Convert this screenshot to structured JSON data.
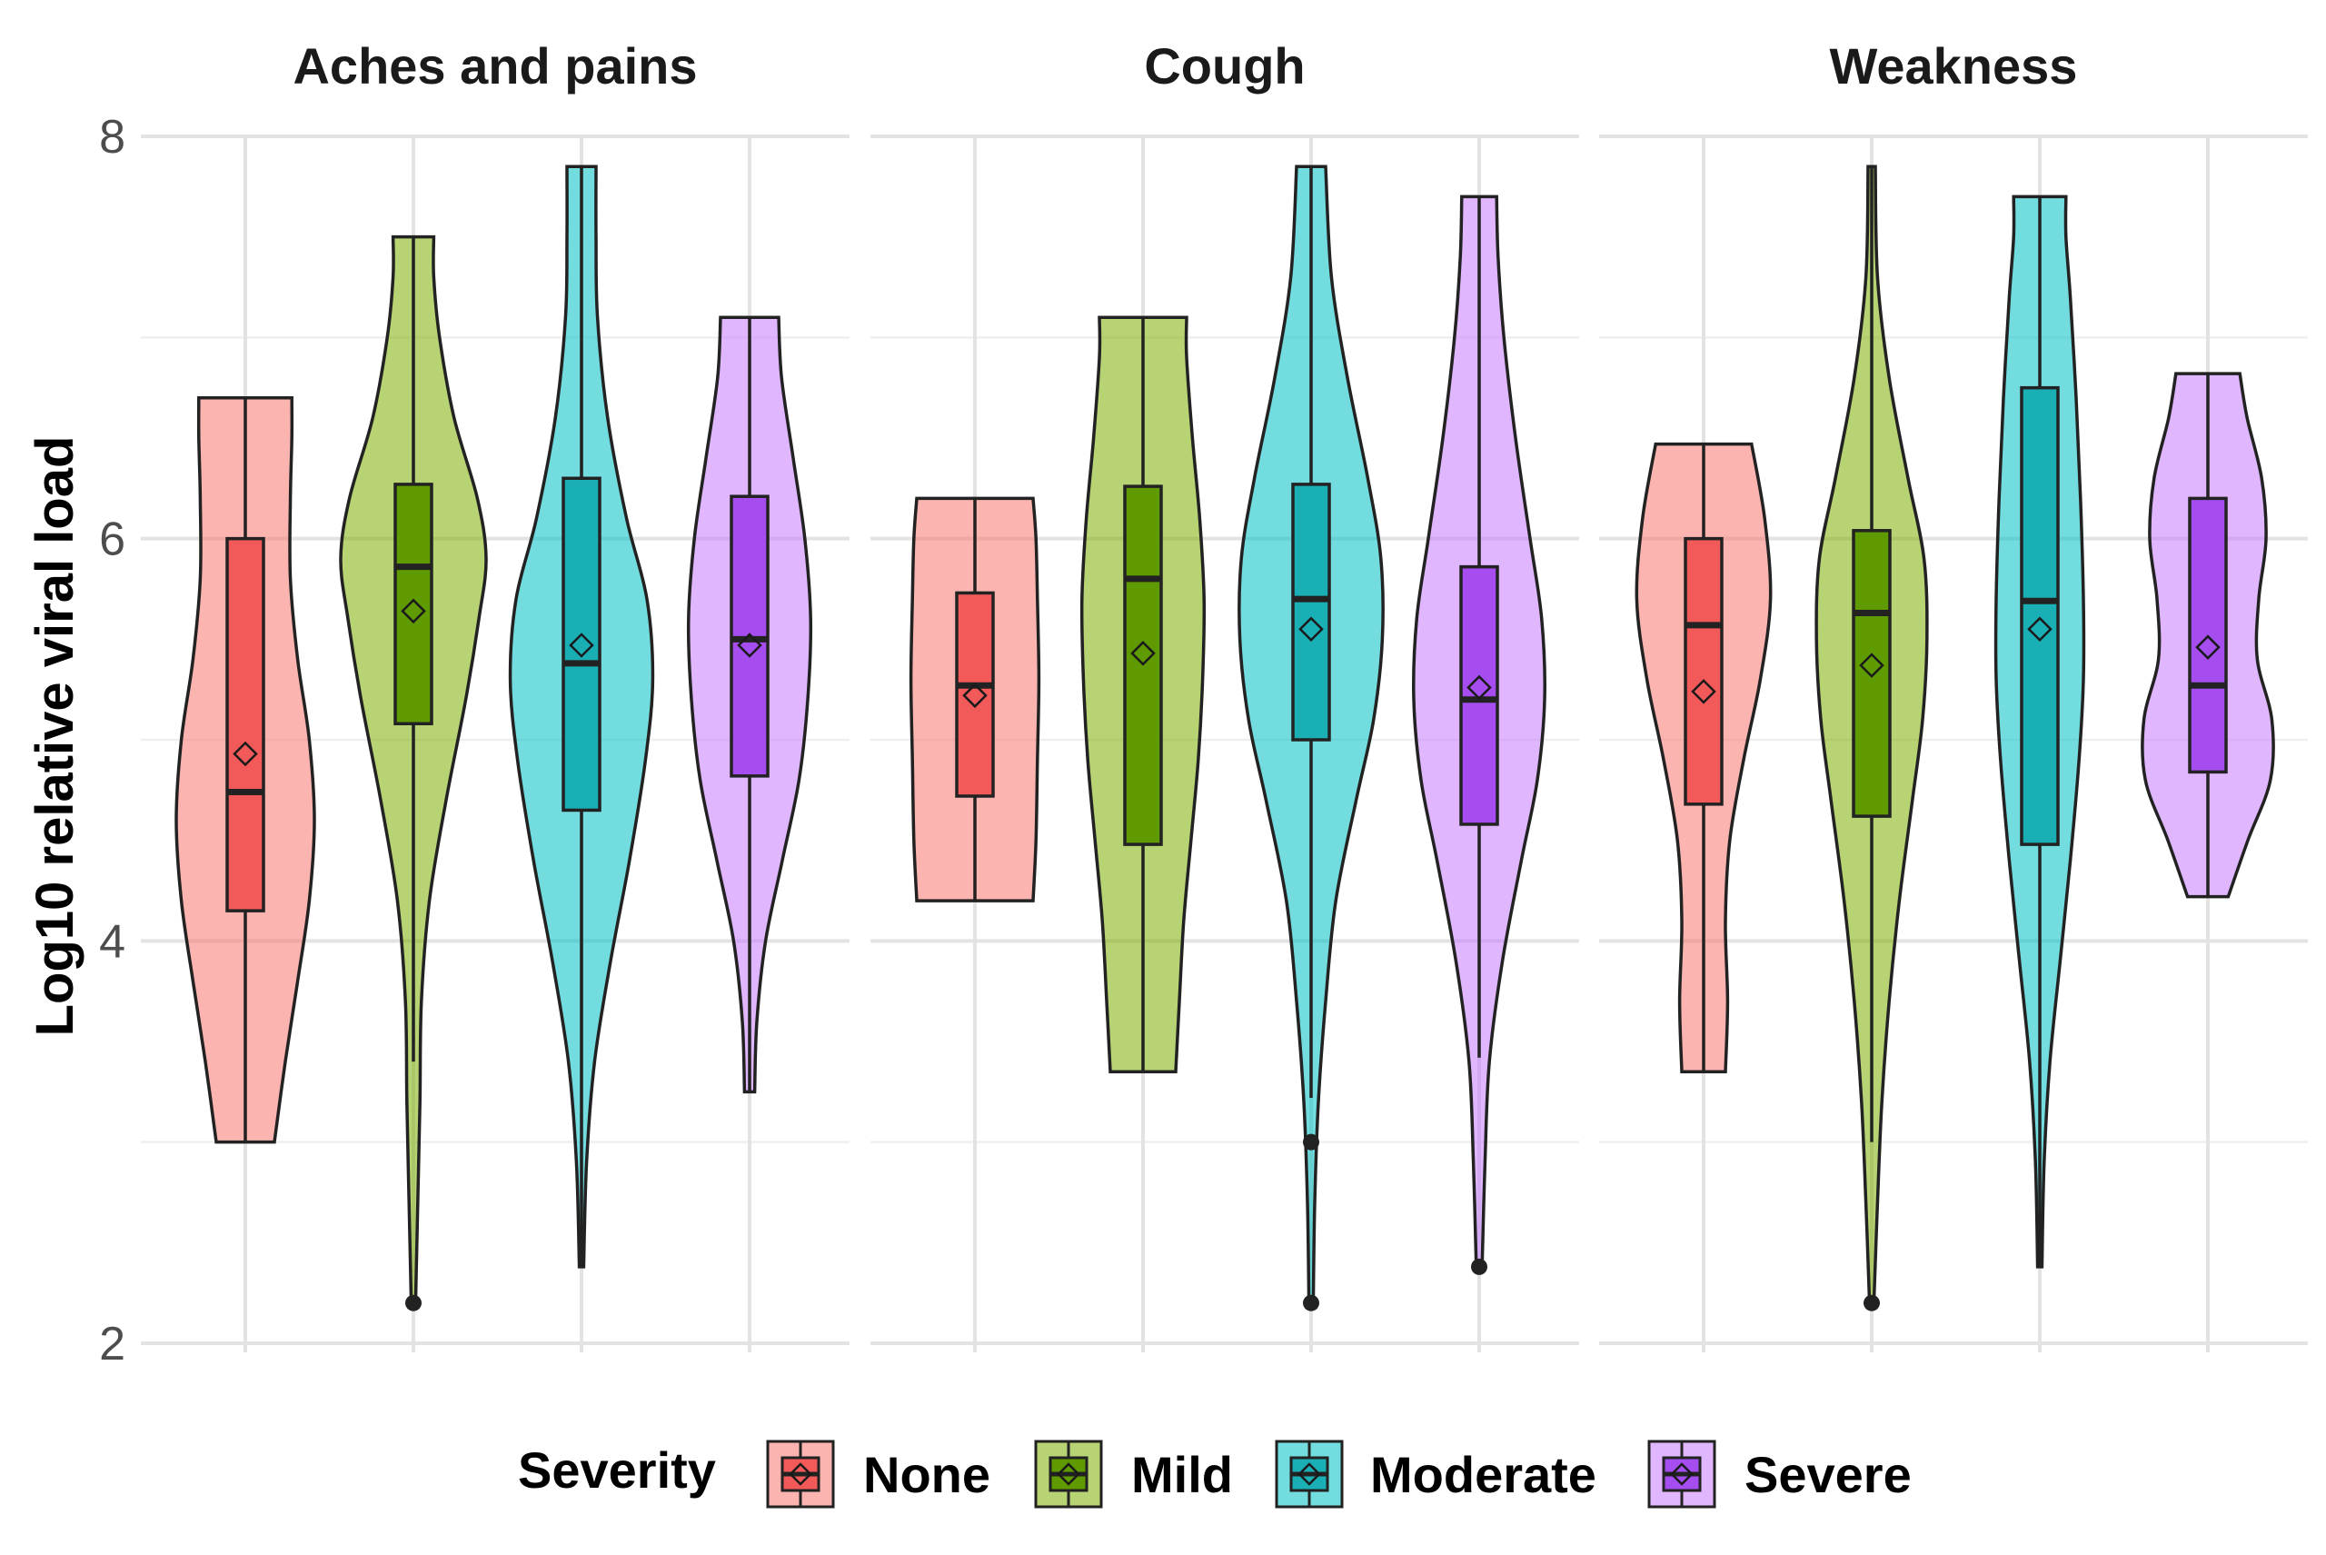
{
  "chart_data": {
    "type": "violin",
    "ylabel": "Log10 relative viral load",
    "xlabel": "",
    "ylim": [
      2,
      8
    ],
    "yticks": [
      "2",
      "4",
      "6",
      "8"
    ],
    "grid": true,
    "legend": {
      "title": "Severity",
      "position": "bottom",
      "entries": [
        "None",
        "Mild",
        "Moderate",
        "Severe"
      ]
    },
    "colors": {
      "None": "#F8766D",
      "Mild": "#7CAE00",
      "Moderate": "#00BFC4",
      "Severe": "#C77CFF"
    },
    "box_colors": {
      "None": "#F25A5A",
      "Mild": "#5E9A00",
      "Moderate": "#1AAFB5",
      "Severe": "#A64DF0"
    },
    "categories": [
      "None",
      "Mild",
      "Moderate",
      "Severe"
    ],
    "facets": [
      {
        "title": "Aches and pains",
        "groups": [
          {
            "severity": "None",
            "min": 3.0,
            "max": 6.7,
            "q1": 4.15,
            "median": 4.74,
            "q3": 6.0,
            "whisker_low": 3.0,
            "whisker_high": 6.7,
            "mean": 4.93,
            "outliers": [],
            "density": [
              [
                3.0,
                0.4
              ],
              [
                3.4,
                0.55
              ],
              [
                3.8,
                0.72
              ],
              [
                4.2,
                0.88
              ],
              [
                4.6,
                0.95
              ],
              [
                5.0,
                0.88
              ],
              [
                5.4,
                0.72
              ],
              [
                5.8,
                0.62
              ],
              [
                6.2,
                0.62
              ],
              [
                6.5,
                0.64
              ],
              [
                6.7,
                0.64
              ]
            ]
          },
          {
            "severity": "Mild",
            "min": 2.2,
            "max": 7.5,
            "q1": 5.08,
            "median": 5.86,
            "q3": 6.27,
            "whisker_low": 3.4,
            "whisker_high": 7.5,
            "mean": 5.64,
            "outliers": [
              2.2
            ],
            "density": [
              [
                2.2,
                0.03
              ],
              [
                2.7,
                0.06
              ],
              [
                3.2,
                0.09
              ],
              [
                3.7,
                0.11
              ],
              [
                4.2,
                0.22
              ],
              [
                4.7,
                0.45
              ],
              [
                5.2,
                0.72
              ],
              [
                5.6,
                0.9
              ],
              [
                5.9,
                1.0
              ],
              [
                6.2,
                0.88
              ],
              [
                6.6,
                0.56
              ],
              [
                7.0,
                0.36
              ],
              [
                7.3,
                0.28
              ],
              [
                7.5,
                0.28
              ]
            ]
          },
          {
            "severity": "Moderate",
            "min": 2.38,
            "max": 7.85,
            "q1": 4.65,
            "median": 5.38,
            "q3": 6.3,
            "whisker_low": 2.38,
            "whisker_high": 7.85,
            "mean": 5.47,
            "outliers": [],
            "density": [
              [
                2.38,
                0.03
              ],
              [
                2.9,
                0.07
              ],
              [
                3.4,
                0.18
              ],
              [
                3.9,
                0.4
              ],
              [
                4.4,
                0.66
              ],
              [
                4.9,
                0.88
              ],
              [
                5.3,
                0.98
              ],
              [
                5.7,
                0.9
              ],
              [
                6.1,
                0.62
              ],
              [
                6.6,
                0.36
              ],
              [
                7.1,
                0.22
              ],
              [
                7.5,
                0.2
              ],
              [
                7.85,
                0.2
              ]
            ]
          },
          {
            "severity": "Severe",
            "min": 3.25,
            "max": 7.1,
            "q1": 4.82,
            "median": 5.5,
            "q3": 6.21,
            "whisker_low": 3.25,
            "whisker_high": 7.1,
            "mean": 5.47,
            "outliers": [],
            "density": [
              [
                3.25,
                0.07
              ],
              [
                3.6,
                0.1
              ],
              [
                4.0,
                0.22
              ],
              [
                4.4,
                0.45
              ],
              [
                4.8,
                0.68
              ],
              [
                5.2,
                0.8
              ],
              [
                5.6,
                0.84
              ],
              [
                6.0,
                0.76
              ],
              [
                6.4,
                0.6
              ],
              [
                6.8,
                0.44
              ],
              [
                7.1,
                0.4
              ]
            ]
          }
        ]
      },
      {
        "title": "Cough",
        "groups": [
          {
            "severity": "None",
            "min": 4.2,
            "max": 6.2,
            "q1": 4.72,
            "median": 5.27,
            "q3": 5.73,
            "whisker_low": 4.2,
            "whisker_high": 6.2,
            "mean": 5.22,
            "outliers": [],
            "density": [
              [
                4.2,
                0.8
              ],
              [
                4.5,
                0.84
              ],
              [
                4.9,
                0.86
              ],
              [
                5.3,
                0.88
              ],
              [
                5.7,
                0.86
              ],
              [
                6.0,
                0.84
              ],
              [
                6.2,
                0.8
              ]
            ]
          },
          {
            "severity": "Mild",
            "min": 3.35,
            "max": 7.1,
            "q1": 4.48,
            "median": 5.8,
            "q3": 6.26,
            "whisker_low": 3.35,
            "whisker_high": 7.1,
            "mean": 5.43,
            "outliers": [],
            "density": [
              [
                3.35,
                0.45
              ],
              [
                3.7,
                0.5
              ],
              [
                4.1,
                0.56
              ],
              [
                4.5,
                0.66
              ],
              [
                4.9,
                0.76
              ],
              [
                5.3,
                0.82
              ],
              [
                5.7,
                0.84
              ],
              [
                6.1,
                0.78
              ],
              [
                6.5,
                0.68
              ],
              [
                6.9,
                0.6
              ],
              [
                7.1,
                0.6
              ]
            ]
          },
          {
            "severity": "Moderate",
            "min": 2.2,
            "max": 7.85,
            "q1": 5.0,
            "median": 5.7,
            "q3": 6.27,
            "whisker_low": 3.22,
            "whisker_high": 7.85,
            "mean": 5.55,
            "outliers": [
              3.0,
              2.2
            ],
            "density": [
              [
                2.2,
                0.03
              ],
              [
                2.7,
                0.05
              ],
              [
                3.2,
                0.1
              ],
              [
                3.7,
                0.2
              ],
              [
                4.2,
                0.34
              ],
              [
                4.7,
                0.62
              ],
              [
                5.1,
                0.86
              ],
              [
                5.5,
                0.98
              ],
              [
                5.9,
                0.96
              ],
              [
                6.3,
                0.78
              ],
              [
                6.8,
                0.5
              ],
              [
                7.3,
                0.28
              ],
              [
                7.85,
                0.2
              ]
            ]
          },
          {
            "severity": "Severe",
            "min": 2.38,
            "max": 7.7,
            "q1": 4.58,
            "median": 5.2,
            "q3": 5.86,
            "whisker_low": 3.42,
            "whisker_high": 7.7,
            "mean": 5.26,
            "outliers": [
              2.38
            ],
            "density": [
              [
                2.38,
                0.04
              ],
              [
                2.9,
                0.08
              ],
              [
                3.4,
                0.14
              ],
              [
                3.9,
                0.32
              ],
              [
                4.4,
                0.58
              ],
              [
                4.8,
                0.8
              ],
              [
                5.2,
                0.9
              ],
              [
                5.6,
                0.86
              ],
              [
                6.0,
                0.7
              ],
              [
                6.5,
                0.5
              ],
              [
                7.0,
                0.34
              ],
              [
                7.4,
                0.26
              ],
              [
                7.7,
                0.24
              ]
            ]
          }
        ]
      },
      {
        "title": "Weakness",
        "groups": [
          {
            "severity": "None",
            "min": 3.35,
            "max": 6.47,
            "q1": 4.68,
            "median": 5.57,
            "q3": 6.0,
            "whisker_low": 3.35,
            "whisker_high": 6.47,
            "mean": 5.24,
            "outliers": [],
            "density": [
              [
                3.35,
                0.3
              ],
              [
                3.7,
                0.33
              ],
              [
                4.1,
                0.3
              ],
              [
                4.5,
                0.36
              ],
              [
                4.9,
                0.55
              ],
              [
                5.3,
                0.78
              ],
              [
                5.7,
                0.92
              ],
              [
                6.1,
                0.84
              ],
              [
                6.47,
                0.66
              ]
            ]
          },
          {
            "severity": "Mild",
            "min": 2.2,
            "max": 7.85,
            "q1": 4.62,
            "median": 5.63,
            "q3": 6.04,
            "whisker_low": 3.0,
            "whisker_high": 7.85,
            "mean": 5.37,
            "outliers": [
              2.2
            ],
            "density": [
              [
                2.2,
                0.03
              ],
              [
                2.7,
                0.08
              ],
              [
                3.2,
                0.14
              ],
              [
                3.7,
                0.24
              ],
              [
                4.2,
                0.38
              ],
              [
                4.7,
                0.56
              ],
              [
                5.1,
                0.7
              ],
              [
                5.5,
                0.76
              ],
              [
                5.9,
                0.72
              ],
              [
                6.3,
                0.5
              ],
              [
                6.8,
                0.24
              ],
              [
                7.3,
                0.08
              ],
              [
                7.85,
                0.05
              ]
            ]
          },
          {
            "severity": "Moderate",
            "min": 2.38,
            "max": 7.7,
            "q1": 4.48,
            "median": 5.69,
            "q3": 6.75,
            "whisker_low": 2.38,
            "whisker_high": 7.7,
            "mean": 5.55,
            "outliers": [],
            "density": [
              [
                2.38,
                0.03
              ],
              [
                2.9,
                0.06
              ],
              [
                3.4,
                0.14
              ],
              [
                3.9,
                0.28
              ],
              [
                4.4,
                0.42
              ],
              [
                4.9,
                0.54
              ],
              [
                5.3,
                0.6
              ],
              [
                5.7,
                0.6
              ],
              [
                6.2,
                0.56
              ],
              [
                6.7,
                0.5
              ],
              [
                7.2,
                0.42
              ],
              [
                7.5,
                0.36
              ],
              [
                7.7,
                0.36
              ]
            ]
          },
          {
            "severity": "Severe",
            "min": 4.22,
            "max": 6.82,
            "q1": 4.84,
            "median": 5.27,
            "q3": 6.2,
            "whisker_low": 4.22,
            "whisker_high": 6.82,
            "mean": 5.46,
            "outliers": [],
            "density": [
              [
                4.22,
                0.28
              ],
              [
                4.5,
                0.55
              ],
              [
                4.8,
                0.86
              ],
              [
                5.1,
                0.88
              ],
              [
                5.4,
                0.68
              ],
              [
                5.7,
                0.7
              ],
              [
                6.0,
                0.8
              ],
              [
                6.3,
                0.74
              ],
              [
                6.6,
                0.54
              ],
              [
                6.82,
                0.44
              ]
            ]
          }
        ]
      }
    ]
  }
}
